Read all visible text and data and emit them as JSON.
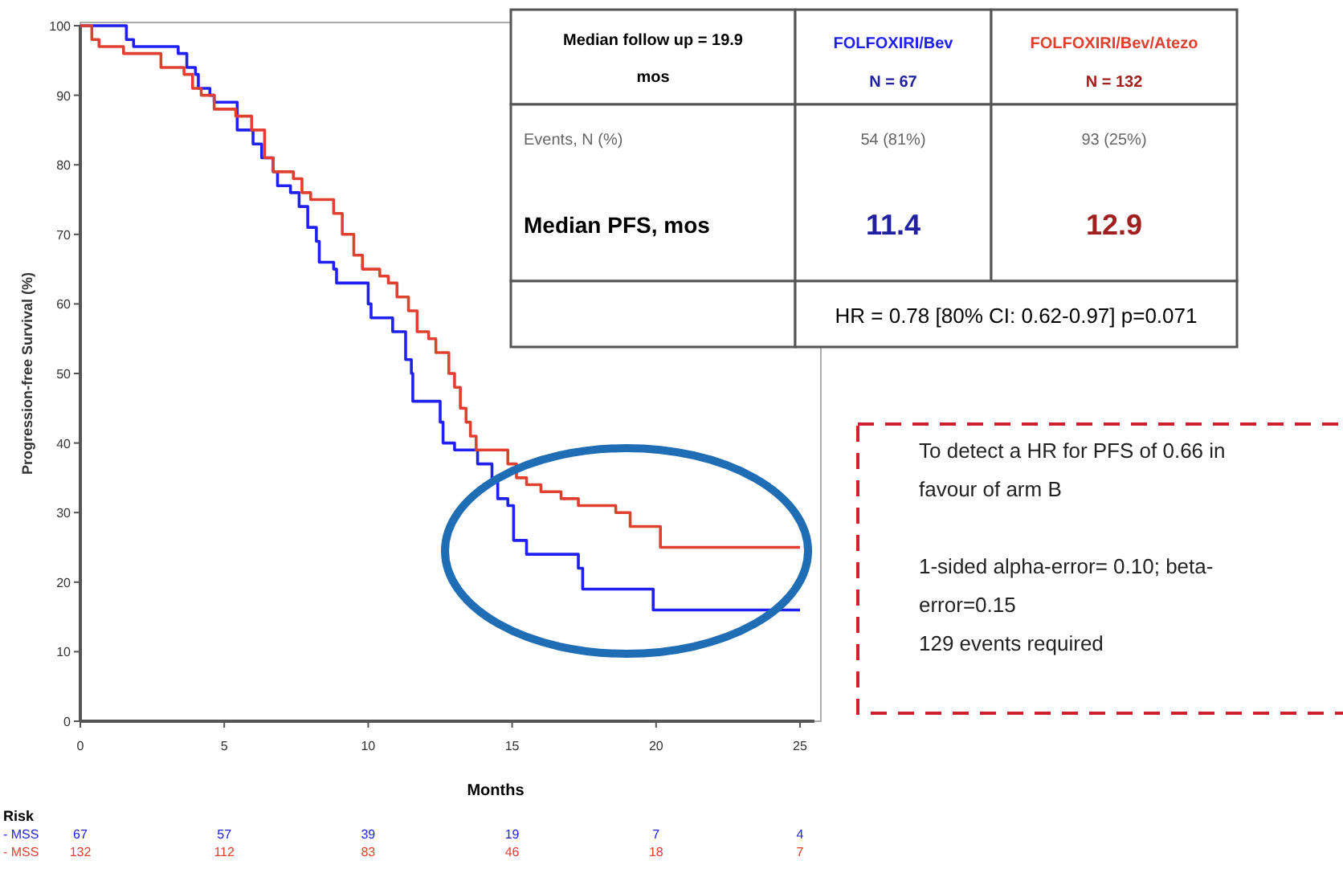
{
  "chart_data": {
    "type": "step",
    "xlabel": "Months",
    "ylabel": "Progression-free Survival (%)",
    "xlim": [
      0,
      25.5
    ],
    "ylim": [
      0,
      100
    ],
    "xticks": [
      0,
      5,
      10,
      15,
      20,
      25
    ],
    "yticks": [
      0,
      10,
      20,
      30,
      40,
      50,
      60,
      70,
      80,
      90,
      100
    ],
    "grid": false,
    "series": [
      {
        "name": "FOLFOXIRI/Bev",
        "color": "#2020f0",
        "x": [
          0,
          1.6,
          1.85,
          2.0,
          3.4,
          3.7,
          4.0,
          4.1,
          4.5,
          4.65,
          5.45,
          6.0,
          6.3,
          6.7,
          6.85,
          7.3,
          7.6,
          7.9,
          8.2,
          8.3,
          8.8,
          8.9,
          10.0,
          10.1,
          10.85,
          11.3,
          11.5,
          11.55,
          12.5,
          12.6,
          13.0,
          13.8,
          14.3,
          14.5,
          14.85,
          15.05,
          15.5,
          17.3,
          17.45,
          19.9,
          25
        ],
        "values": [
          100,
          98,
          97,
          97,
          96,
          94,
          93,
          91,
          90,
          89,
          85,
          83,
          81,
          79,
          77,
          76,
          74,
          71,
          69,
          66,
          65,
          63,
          60,
          58,
          56,
          52,
          50,
          46,
          43,
          40,
          39,
          37,
          35,
          32,
          31,
          26,
          24,
          22,
          19,
          16,
          16
        ]
      },
      {
        "name": "FOLFOXIRI/Bev/Atezo",
        "color": "#e04030",
        "x": [
          0,
          0.4,
          0.65,
          1.5,
          1.8,
          2.8,
          3.6,
          3.9,
          4.2,
          4.65,
          5.4,
          5.95,
          6.4,
          6.7,
          6.85,
          7.4,
          7.7,
          8.0,
          8.8,
          9.1,
          9.5,
          9.8,
          10.4,
          10.7,
          11.0,
          11.4,
          11.7,
          12.1,
          12.35,
          12.8,
          13.0,
          13.2,
          13.4,
          13.55,
          13.75,
          14.85,
          15.15,
          15.5,
          16.0,
          16.7,
          17.3,
          18.2,
          18.6,
          19.1,
          20.15,
          25
        ],
        "values": [
          100,
          98,
          97,
          96,
          96,
          94,
          93,
          91,
          90,
          88,
          87,
          85,
          81,
          79,
          79,
          78,
          76,
          75,
          73,
          70,
          67,
          65,
          64,
          63,
          61,
          59,
          56,
          55,
          53,
          50,
          48,
          45,
          43,
          41,
          39,
          37,
          35,
          34,
          33,
          32,
          31,
          31,
          30,
          28,
          25,
          25
        ]
      }
    ],
    "annotations": [
      "Median follow up = 19.9 mos",
      "N = 67",
      "N = 132",
      "Events, N (%)",
      "54 (81%)",
      "93 (25%)",
      "Median PFS, mos",
      "11.4",
      "12.9",
      "HR = 0.78 [80% CI: 0.62-0.97] p=0.071",
      "To detect a HR for PFS of 0.66 in favour of arm B",
      "1-sided alpha-error= 0.10; beta-error=0.15",
      "129 events required",
      "Risk",
      "- MSS",
      "- MSS",
      "67",
      "57",
      "39",
      "19",
      "7",
      "4",
      "132",
      "112",
      "83",
      "46",
      "18",
      "7"
    ]
  }
}
